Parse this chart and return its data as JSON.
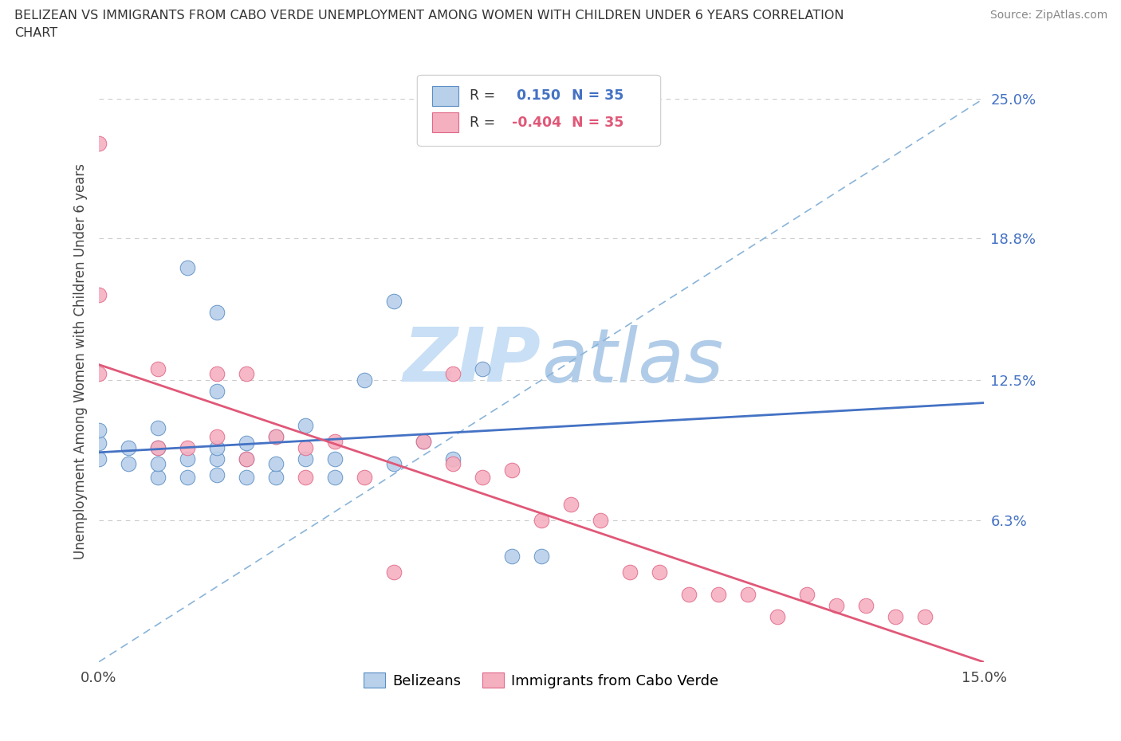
{
  "title_line1": "BELIZEAN VS IMMIGRANTS FROM CABO VERDE UNEMPLOYMENT AMONG WOMEN WITH CHILDREN UNDER 6 YEARS CORRELATION",
  "title_line2": "CHART",
  "source": "Source: ZipAtlas.com",
  "ylabel": "Unemployment Among Women with Children Under 6 years",
  "xlim": [
    0.0,
    0.15
  ],
  "ylim": [
    0.0,
    0.267
  ],
  "ytick_vals": [
    0.0,
    0.063,
    0.125,
    0.188,
    0.25
  ],
  "ytick_labels": [
    "",
    "6.3%",
    "12.5%",
    "18.8%",
    "25.0%"
  ],
  "xtick_vals": [
    0.0,
    0.025,
    0.05,
    0.075,
    0.1,
    0.125,
    0.15
  ],
  "xtick_labels": [
    "0.0%",
    "",
    "",
    "",
    "",
    "",
    "15.0%"
  ],
  "r_belizean": 0.15,
  "r_caboverde": -0.404,
  "n": 35,
  "color_belizean_fill": "#b8d0ea",
  "color_belizean_edge": "#5b8ec4",
  "color_caboverde_fill": "#f5b0c0",
  "color_caboverde_edge": "#e06888",
  "color_line_blue": "#4472c4",
  "color_line_pink": "#e05878",
  "color_dash": "#8ab4d8",
  "watermark": "ZIPatlas",
  "watermark_color": "#dce8f5",
  "legend_label_belizean": "Belizeans",
  "legend_label_caboverde": "Immigrants from Cabo Verde",
  "blue_x": [
    0.0,
    0.0,
    0.0,
    0.005,
    0.005,
    0.01,
    0.01,
    0.01,
    0.01,
    0.015,
    0.015,
    0.015,
    0.02,
    0.02,
    0.02,
    0.02,
    0.02,
    0.025,
    0.025,
    0.025,
    0.03,
    0.03,
    0.03,
    0.035,
    0.035,
    0.04,
    0.04,
    0.045,
    0.05,
    0.05,
    0.055,
    0.06,
    0.065,
    0.07,
    0.075
  ],
  "blue_y": [
    0.09,
    0.097,
    0.103,
    0.088,
    0.095,
    0.082,
    0.088,
    0.095,
    0.104,
    0.082,
    0.09,
    0.175,
    0.083,
    0.09,
    0.095,
    0.12,
    0.155,
    0.082,
    0.09,
    0.097,
    0.082,
    0.088,
    0.1,
    0.09,
    0.105,
    0.082,
    0.09,
    0.125,
    0.088,
    0.16,
    0.098,
    0.09,
    0.13,
    0.047,
    0.047
  ],
  "pink_x": [
    0.0,
    0.0,
    0.0,
    0.01,
    0.01,
    0.015,
    0.02,
    0.02,
    0.025,
    0.025,
    0.03,
    0.035,
    0.035,
    0.04,
    0.045,
    0.05,
    0.055,
    0.06,
    0.06,
    0.065,
    0.07,
    0.075,
    0.08,
    0.085,
    0.09,
    0.095,
    0.1,
    0.105,
    0.11,
    0.115,
    0.12,
    0.125,
    0.13,
    0.135,
    0.14
  ],
  "pink_y": [
    0.128,
    0.163,
    0.23,
    0.095,
    0.13,
    0.095,
    0.1,
    0.128,
    0.09,
    0.128,
    0.1,
    0.082,
    0.095,
    0.098,
    0.082,
    0.04,
    0.098,
    0.088,
    0.128,
    0.082,
    0.085,
    0.063,
    0.07,
    0.063,
    0.04,
    0.04,
    0.03,
    0.03,
    0.03,
    0.02,
    0.03,
    0.025,
    0.025,
    0.02,
    0.02
  ],
  "blue_trend_x": [
    0.0,
    0.15
  ],
  "blue_trend_y": [
    0.093,
    0.115
  ],
  "pink_trend_x": [
    0.0,
    0.15
  ],
  "pink_trend_y": [
    0.132,
    0.0
  ]
}
